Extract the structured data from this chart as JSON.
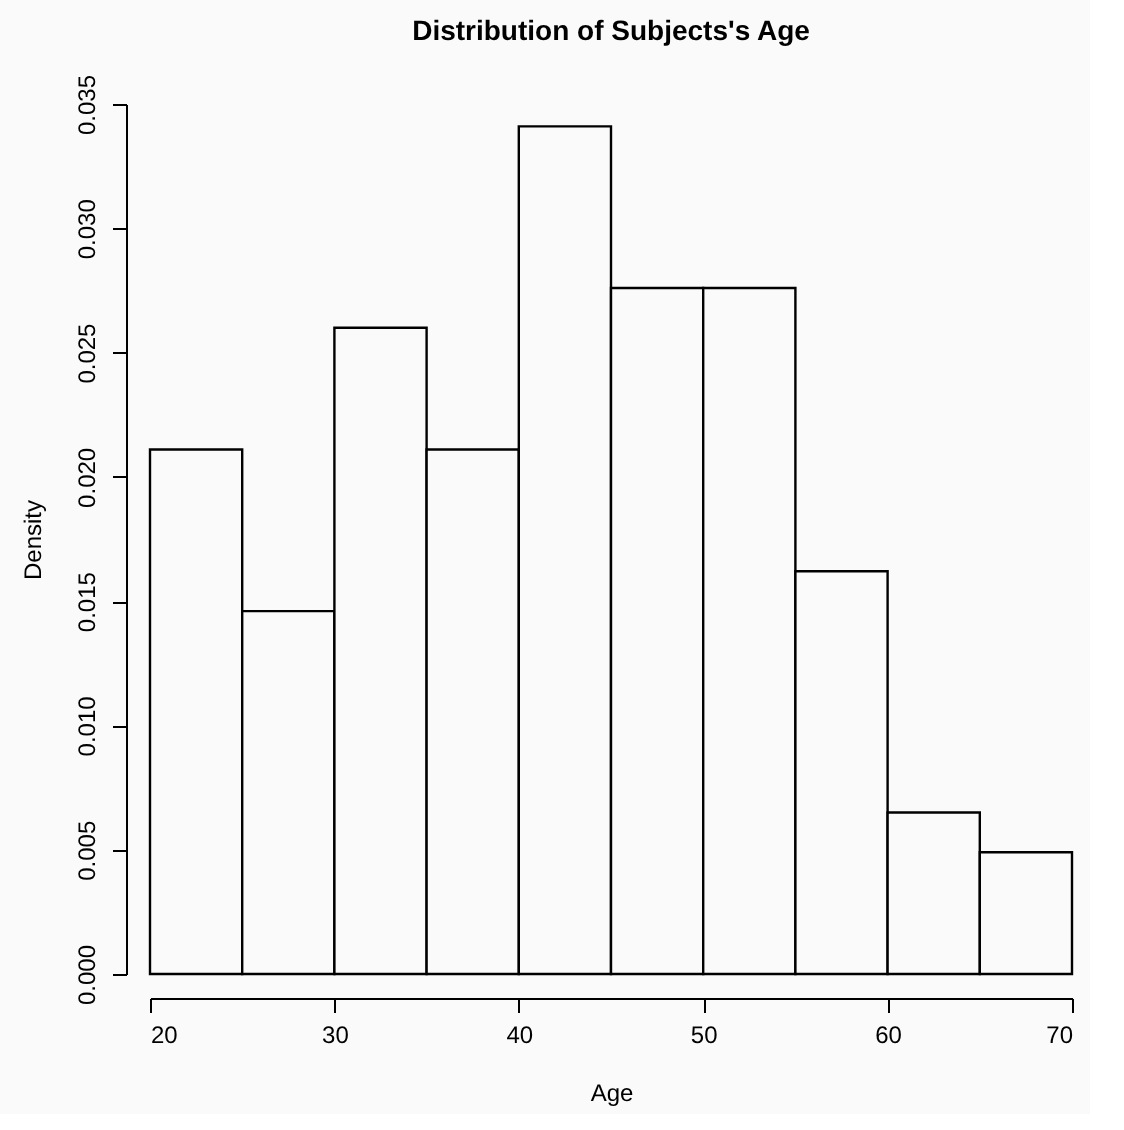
{
  "chart_data": {
    "type": "histogram",
    "title": "Distribution of Subjects's Age",
    "xlabel": "Age",
    "ylabel": "Density",
    "bins": [
      20,
      25,
      30,
      35,
      40,
      45,
      50,
      55,
      60,
      65,
      70
    ],
    "values": [
      0.0211,
      0.0146,
      0.026,
      0.0211,
      0.0341,
      0.0276,
      0.0276,
      0.0162,
      0.0065,
      0.0049
    ],
    "color": "#fafafa",
    "xlim": [
      20,
      70
    ],
    "xticks": [
      20,
      30,
      40,
      50,
      60,
      70
    ],
    "ylim": [
      0,
      0.035
    ],
    "yticks": [
      {
        "value": 0,
        "label": "0.000"
      },
      {
        "value": 0.005,
        "label": "0.005"
      },
      {
        "value": 0.01,
        "label": "0.010"
      },
      {
        "value": 0.015,
        "label": "0.015"
      },
      {
        "value": 0.02,
        "label": "0.020"
      },
      {
        "value": 0.025,
        "label": "0.025"
      },
      {
        "value": 0.03,
        "label": "0.030"
      },
      {
        "value": 0.035,
        "label": "0.035"
      }
    ],
    "grid": false
  }
}
